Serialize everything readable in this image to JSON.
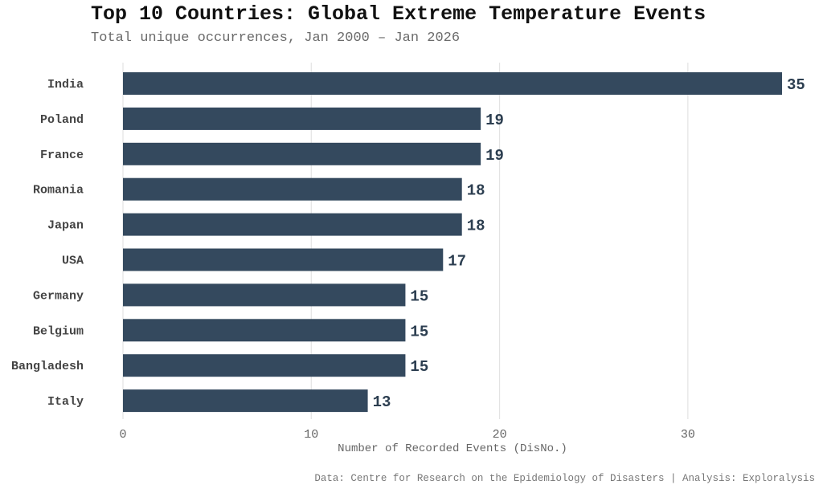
{
  "chart_data": {
    "type": "bar",
    "orientation": "horizontal",
    "title": "Top 10 Countries: Global Extreme Temperature Events",
    "subtitle": "Total unique occurrences, Jan 2000 – Jan 2026",
    "xlabel": "Number of Recorded Events (DisNo.)",
    "ylabel": "",
    "categories": [
      "India",
      "Poland",
      "France",
      "Romania",
      "Japan",
      "USA",
      "Germany",
      "Belgium",
      "Bangladesh",
      "Italy"
    ],
    "values": [
      35,
      19,
      19,
      18,
      18,
      17,
      15,
      15,
      15,
      13
    ],
    "xlim": [
      0,
      36.5
    ],
    "xticks": [
      0,
      10,
      20,
      30
    ],
    "grid": "vertical",
    "bar_color": "#34495e",
    "label_color": "#2c3e50",
    "caption": "Data: Centre for Research on the Epidemiology of Disasters | Analysis: Exploralysis"
  }
}
